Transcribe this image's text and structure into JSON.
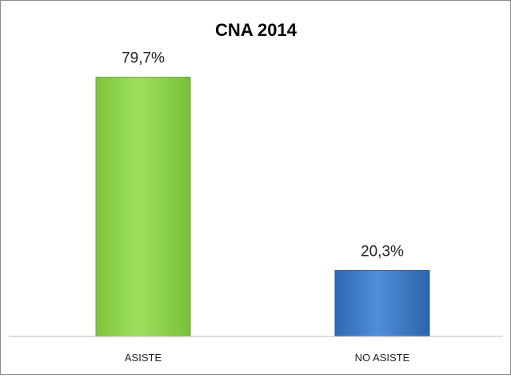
{
  "chart_data": {
    "type": "bar",
    "title": "CNA 2014",
    "categories": [
      "ASISTE",
      "NO ASISTE"
    ],
    "values": [
      79.7,
      20.3
    ],
    "value_labels": [
      "79,7%",
      "20,3%"
    ],
    "ylim": [
      0,
      100
    ],
    "grid": false,
    "legend": "none",
    "colors": [
      "#8fd14f",
      "#3f7fc9"
    ]
  }
}
